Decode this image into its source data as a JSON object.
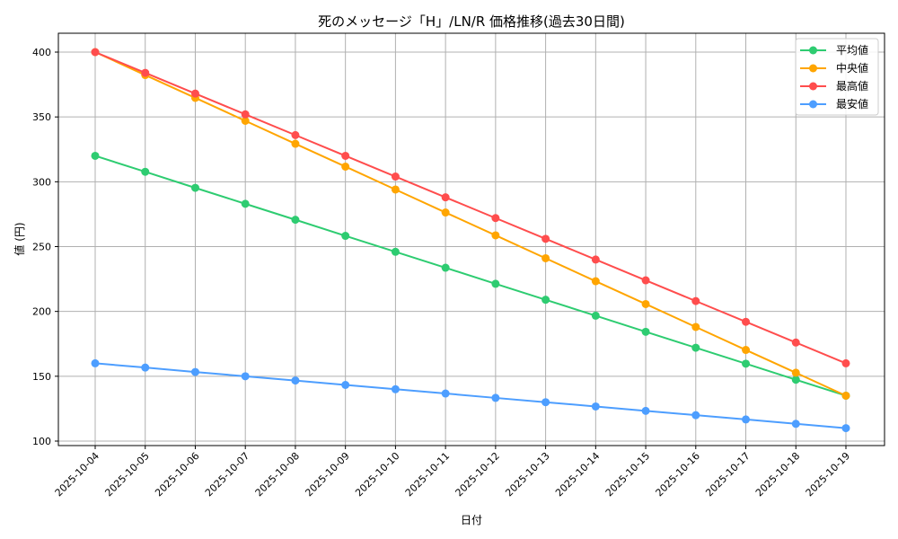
{
  "chart_data": {
    "type": "line",
    "title": "死のメッセージ「H」/LN/R 価格推移(過去30日間)",
    "xlabel": "日付",
    "ylabel": "値 (円)",
    "ylim": [
      95,
      415
    ],
    "yticks": [
      100,
      150,
      200,
      250,
      300,
      350,
      400
    ],
    "grid": true,
    "legend_position": "upper right",
    "categories": [
      "2025-10-04",
      "2025-10-05",
      "2025-10-06",
      "2025-10-07",
      "2025-10-08",
      "2025-10-09",
      "2025-10-10",
      "2025-10-11",
      "2025-10-12",
      "2025-10-13",
      "2025-10-14",
      "2025-10-15",
      "2025-10-16",
      "2025-10-17",
      "2025-10-18",
      "2025-10-19"
    ],
    "series": [
      {
        "name": "平均値",
        "color": "#2ecc71",
        "values": [
          320.0,
          307.7,
          295.3,
          283.0,
          270.7,
          258.3,
          246.0,
          233.7,
          221.3,
          209.0,
          196.7,
          184.3,
          172.0,
          159.7,
          147.3,
          135.0
        ]
      },
      {
        "name": "中央値",
        "color": "#ffa500",
        "values": [
          400.0,
          382.3,
          364.7,
          347.0,
          329.3,
          311.7,
          294.0,
          276.3,
          258.7,
          241.0,
          223.3,
          205.7,
          188.0,
          170.3,
          152.7,
          135.0
        ]
      },
      {
        "name": "最高値",
        "color": "#ff4d4d",
        "values": [
          400,
          384,
          368,
          352,
          336,
          320,
          304,
          288,
          272,
          256,
          240,
          224,
          208,
          192,
          176,
          160
        ]
      },
      {
        "name": "最安値",
        "color": "#4d9eff",
        "values": [
          160.0,
          156.7,
          153.3,
          150.0,
          146.7,
          143.3,
          140.0,
          136.7,
          133.3,
          130.0,
          126.7,
          123.3,
          120.0,
          116.7,
          113.3,
          110.0
        ]
      }
    ]
  }
}
